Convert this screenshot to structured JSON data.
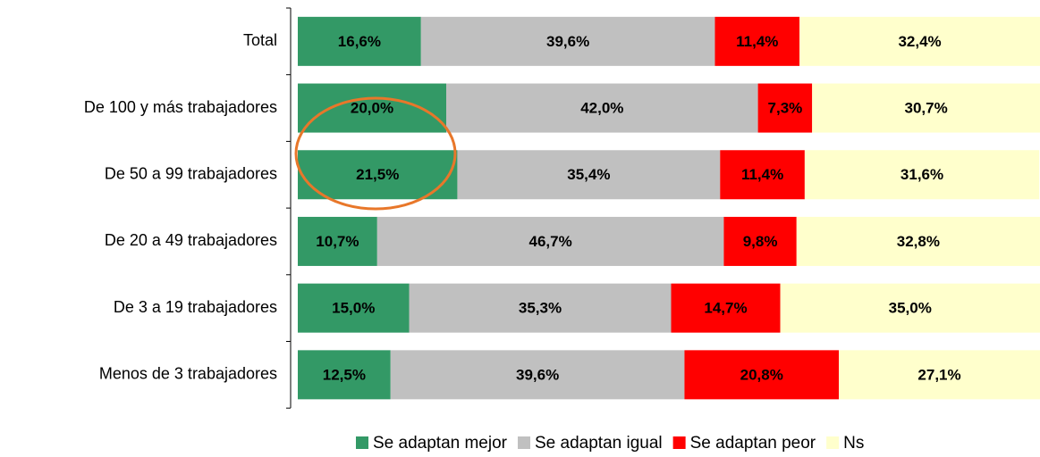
{
  "chart_data": {
    "type": "stacked_bar_horizontal",
    "categories": [
      "Total",
      "De 100 y más trabajadores",
      "De 50 a 99 trabajadores",
      "De 20 a 49 trabajadores",
      "De 3 a 19 trabajadores",
      "Menos de 3 trabajadores"
    ],
    "xlim": [
      0,
      100
    ],
    "legend": "bottom",
    "series": [
      {
        "name": "Se adaptan mejor",
        "color": "#339966",
        "values": [
          16.6,
          20.0,
          21.5,
          10.7,
          15.0,
          12.5
        ],
        "value_labels": [
          "16,6%",
          "20,0%",
          "21,5%",
          "10,7%",
          "15,0%",
          "12,5%"
        ]
      },
      {
        "name": "Se adaptan igual",
        "color": "#c0c0c0",
        "values": [
          39.6,
          42.0,
          35.4,
          46.7,
          35.3,
          39.6
        ],
        "value_labels": [
          "39,6%",
          "42,0%",
          "35,4%",
          "46,7%",
          "35,3%",
          "39,6%"
        ]
      },
      {
        "name": "Se adaptan peor",
        "color": "#ff0000",
        "values": [
          11.4,
          7.3,
          11.4,
          9.8,
          14.7,
          20.8
        ],
        "value_labels": [
          "11,4%",
          "7,3%",
          "11,4%",
          "9,8%",
          "14,7%",
          "20,8%"
        ]
      },
      {
        "name": "Ns",
        "color": "#ffffcc",
        "values": [
          32.4,
          30.7,
          31.6,
          32.8,
          35.0,
          27.1
        ],
        "value_labels": [
          "32,4%",
          "30,7%",
          "31,6%",
          "32,8%",
          "35,0%",
          "27,1%"
        ]
      }
    ]
  }
}
